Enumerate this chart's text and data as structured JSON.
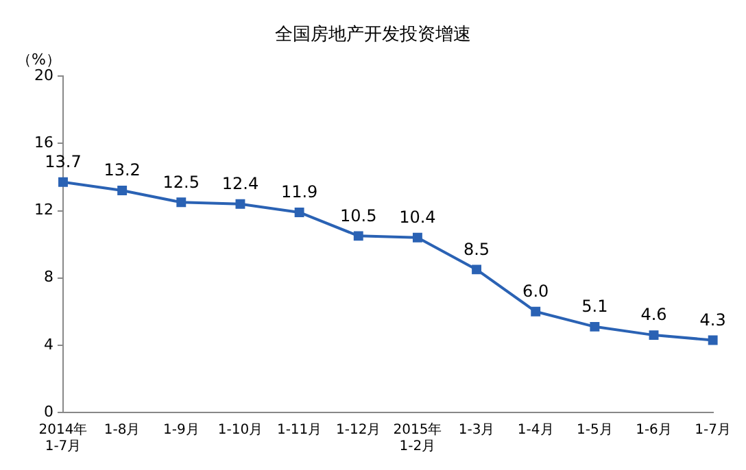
{
  "chart_data": {
    "type": "line",
    "title": "全国房地产开发投资增速",
    "ylabel": "（%）",
    "categories": [
      "2014年\n1-7月",
      "1-8月",
      "1-9月",
      "1-10月",
      "1-11月",
      "1-12月",
      "2015年\n1-2月",
      "1-3月",
      "1-4月",
      "1-5月",
      "1-6月",
      "1-7月"
    ],
    "series": [
      {
        "color": "#2a62b4",
        "values": [
          13.7,
          13.2,
          12.5,
          12.4,
          11.9,
          10.5,
          10.4,
          8.5,
          6.0,
          5.1,
          4.6,
          4.3
        ],
        "value_labels": [
          "13.7",
          "13.2",
          "12.5",
          "12.4",
          "11.9",
          "10.5",
          "10.4",
          "8.5",
          "6.0",
          "5.1",
          "4.6",
          "4.3"
        ]
      }
    ],
    "ylim": [
      0,
      20
    ],
    "yticks": [
      0,
      4,
      8,
      12,
      16,
      20
    ],
    "marker": "square",
    "line_style": "solid",
    "grid": false,
    "legend": false
  }
}
